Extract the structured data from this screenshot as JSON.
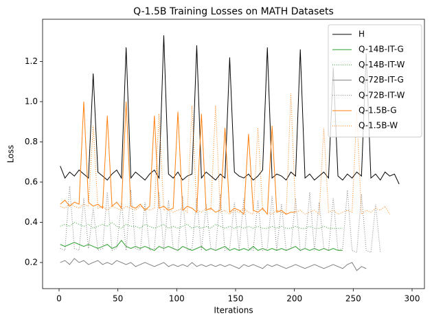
{
  "chart_data": {
    "type": "line",
    "title": "Q-1.5B Training Losses on MATH Datasets",
    "x_label": "Iterations",
    "y_label": "Loss",
    "xlim": [
      -14,
      310.5
    ],
    "ylim": [
      0.07,
      1.41
    ],
    "xticks": [
      0,
      50,
      100,
      150,
      200,
      250,
      300
    ],
    "yticks": [
      0.2,
      0.4,
      0.6,
      0.8,
      {
        "value": 1,
        "label": "1.0"
      },
      1.2
    ],
    "grid": false,
    "legend": "upper right",
    "x": [
      1,
      5,
      9,
      13,
      17,
      21,
      25,
      29,
      33,
      37,
      41,
      45,
      49,
      53,
      57,
      61,
      65,
      69,
      73,
      77,
      81,
      85,
      89,
      93,
      97,
      101,
      105,
      109,
      113,
      117,
      121,
      125,
      129,
      133,
      137,
      141,
      145,
      149,
      153,
      157,
      161,
      165,
      169,
      173,
      177,
      181,
      185,
      189,
      193,
      197,
      201,
      205,
      209,
      213,
      217,
      221,
      225,
      229,
      233,
      237,
      241,
      245,
      249,
      253,
      257,
      261,
      265,
      269,
      273,
      277,
      281,
      285,
      289
    ],
    "series": [
      {
        "name": "H",
        "color": "#000000",
        "dash": "solid",
        "values": [
          0.68,
          0.62,
          0.65,
          0.63,
          0.66,
          0.64,
          0.62,
          1.14,
          0.65,
          0.63,
          0.61,
          0.64,
          0.66,
          0.62,
          1.27,
          0.62,
          0.65,
          0.63,
          0.61,
          0.64,
          0.66,
          0.62,
          1.33,
          0.64,
          0.62,
          0.65,
          0.61,
          0.63,
          0.64,
          1.28,
          0.62,
          0.65,
          0.63,
          0.61,
          0.64,
          0.62,
          1.22,
          0.65,
          0.63,
          0.62,
          0.64,
          0.61,
          0.63,
          0.66,
          1.27,
          0.62,
          0.64,
          0.63,
          0.61,
          0.65,
          0.63,
          1.26,
          0.62,
          0.64,
          0.61,
          0.63,
          0.65,
          0.62,
          1.17,
          0.63,
          0.61,
          0.64,
          0.62,
          0.65,
          0.63,
          1.24,
          0.62,
          0.64,
          0.61,
          0.65,
          0.63,
          0.64,
          0.59
        ]
      },
      {
        "name": "Q-14B-IT-G",
        "color": "#2ca02c",
        "dash": "solid",
        "values": [
          0.29,
          0.28,
          0.29,
          0.3,
          0.29,
          0.28,
          0.29,
          0.28,
          0.27,
          0.28,
          0.29,
          0.27,
          0.28,
          0.31,
          0.28,
          0.27,
          0.28,
          0.27,
          0.28,
          0.27,
          0.26,
          0.28,
          0.27,
          0.28,
          0.27,
          0.26,
          0.28,
          0.27,
          0.26,
          0.27,
          0.28,
          0.26,
          0.27,
          0.26,
          0.27,
          0.28,
          0.26,
          0.27,
          0.26,
          0.27,
          0.26,
          0.28,
          0.26,
          0.27,
          0.26,
          0.27,
          0.26,
          0.27,
          0.26,
          0.27,
          0.28,
          0.26,
          0.27,
          0.26,
          0.27,
          0.26,
          0.27,
          0.26,
          0.27,
          0.26,
          0.26,
          null,
          null,
          null,
          null,
          null,
          null,
          null,
          null,
          null,
          null,
          null,
          null
        ]
      },
      {
        "name": "Q-14B-IT-W",
        "color": "#2ca02c",
        "dash": "dotted",
        "values": [
          0.38,
          0.39,
          0.38,
          0.4,
          0.39,
          0.38,
          0.39,
          0.37,
          0.38,
          0.39,
          0.38,
          0.4,
          0.38,
          0.37,
          0.39,
          0.38,
          0.38,
          0.37,
          0.39,
          0.38,
          0.37,
          0.38,
          0.39,
          0.37,
          0.38,
          0.37,
          0.38,
          0.39,
          0.37,
          0.38,
          0.37,
          0.38,
          0.37,
          0.39,
          0.38,
          0.37,
          0.38,
          0.37,
          0.38,
          0.37,
          0.38,
          0.37,
          0.38,
          0.37,
          0.37,
          0.38,
          0.37,
          0.38,
          0.37,
          0.37,
          0.38,
          0.37,
          0.37,
          0.38,
          0.37,
          0.37,
          0.38,
          0.37,
          0.37,
          0.37,
          0.37,
          null,
          null,
          null,
          null,
          null,
          null,
          null,
          null,
          null,
          null,
          null,
          null
        ]
      },
      {
        "name": "Q-72B-IT-G",
        "color": "#7f7f7f",
        "dash": "solid",
        "values": [
          0.2,
          0.21,
          0.19,
          0.22,
          0.2,
          0.21,
          0.19,
          0.2,
          0.21,
          0.19,
          0.2,
          0.19,
          0.21,
          0.2,
          0.19,
          0.2,
          0.18,
          0.19,
          0.2,
          0.19,
          0.18,
          0.19,
          0.2,
          0.18,
          0.19,
          0.18,
          0.19,
          0.18,
          0.2,
          0.18,
          0.19,
          0.18,
          0.19,
          0.18,
          0.19,
          0.18,
          0.19,
          0.18,
          0.17,
          0.19,
          0.18,
          0.19,
          0.18,
          0.17,
          0.19,
          0.18,
          0.19,
          0.18,
          0.17,
          0.18,
          0.19,
          0.18,
          0.17,
          0.18,
          0.19,
          0.18,
          0.17,
          0.18,
          0.19,
          0.18,
          0.17,
          0.19,
          0.2,
          0.16,
          0.18,
          0.17,
          null,
          null,
          null,
          null,
          null,
          null,
          null
        ]
      },
      {
        "name": "Q-72B-IT-W",
        "color": "#7f7f7f",
        "dash": "dotted",
        "values": [
          0.27,
          0.26,
          0.58,
          0.27,
          0.26,
          0.52,
          0.27,
          0.47,
          0.26,
          0.27,
          0.55,
          0.26,
          0.27,
          0.5,
          0.26,
          0.56,
          0.27,
          0.26,
          0.5,
          0.26,
          0.27,
          0.55,
          0.26,
          0.51,
          0.27,
          0.26,
          0.53,
          0.26,
          0.27,
          0.52,
          0.26,
          0.49,
          0.27,
          0.26,
          0.54,
          0.26,
          0.27,
          0.5,
          0.26,
          0.52,
          0.27,
          0.26,
          0.51,
          0.26,
          0.27,
          0.53,
          0.26,
          0.49,
          0.26,
          0.27,
          0.52,
          0.26,
          0.27,
          0.55,
          0.26,
          0.5,
          0.27,
          0.26,
          0.52,
          0.26,
          0.27,
          0.56,
          0.26,
          0.25,
          0.54,
          0.26,
          0.25,
          0.49,
          0.25,
          null,
          null,
          null,
          null
        ]
      },
      {
        "name": "Q-1.5B-G",
        "color": "#ff7f0e",
        "dash": "solid",
        "values": [
          0.49,
          0.51,
          0.48,
          0.5,
          0.49,
          1.0,
          0.5,
          0.48,
          0.49,
          0.47,
          0.93,
          0.48,
          0.5,
          0.47,
          1.0,
          0.48,
          0.47,
          0.49,
          0.46,
          0.48,
          0.93,
          0.47,
          0.48,
          0.46,
          0.47,
          0.95,
          0.46,
          0.48,
          0.47,
          0.45,
          0.94,
          0.46,
          0.47,
          0.45,
          0.46,
          0.87,
          0.45,
          0.47,
          0.46,
          0.44,
          0.84,
          0.46,
          0.45,
          0.47,
          0.44,
          0.88,
          0.45,
          0.46,
          0.44,
          0.45,
          0.45,
          null,
          null,
          null,
          null,
          null,
          null,
          null,
          null,
          null,
          null,
          null,
          null,
          null,
          null,
          null,
          null,
          null,
          null,
          null,
          null,
          null,
          null
        ]
      },
      {
        "name": "Q-1.5B-W",
        "color": "#ff7f0e",
        "dash": "dotted",
        "values": [
          0.48,
          0.47,
          0.49,
          0.48,
          0.47,
          0.49,
          0.48,
          0.88,
          0.47,
          0.48,
          0.46,
          0.48,
          0.47,
          0.46,
          0.48,
          0.47,
          0.46,
          0.48,
          0.47,
          0.46,
          0.47,
          0.94,
          0.46,
          0.47,
          0.45,
          0.46,
          0.47,
          0.45,
          0.98,
          0.46,
          0.45,
          0.47,
          0.46,
          0.98,
          0.45,
          0.46,
          0.44,
          0.46,
          0.45,
          0.47,
          0.45,
          0.44,
          0.87,
          0.46,
          0.45,
          0.44,
          0.46,
          0.45,
          0.44,
          1.04,
          0.45,
          0.46,
          0.44,
          0.45,
          0.46,
          0.44,
          0.87,
          0.45,
          0.46,
          0.44,
          0.45,
          0.46,
          0.45,
          0.95,
          0.44,
          0.46,
          0.45,
          0.47,
          0.46,
          0.48,
          0.44,
          null,
          null
        ]
      }
    ]
  }
}
